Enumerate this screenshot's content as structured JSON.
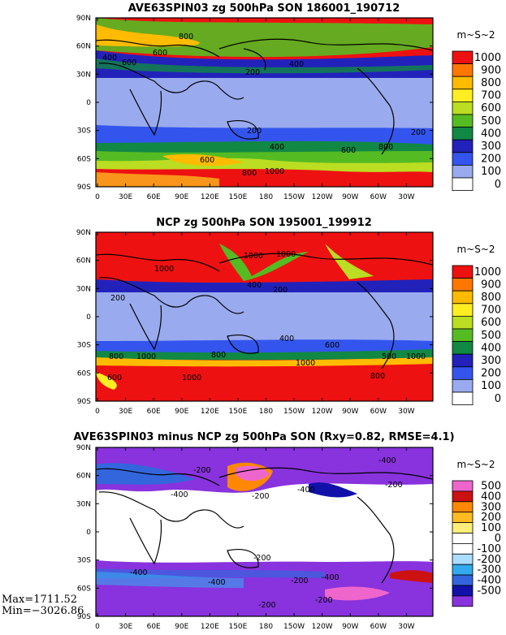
{
  "lat_labels": [
    "90N",
    "60N",
    "30N",
    "0",
    "30S",
    "60S",
    "90S"
  ],
  "lon_labels": [
    "0",
    "30E",
    "60E",
    "90E",
    "120E",
    "150E",
    "180",
    "150W",
    "120W",
    "90W",
    "60W",
    "30W"
  ],
  "panels": [
    {
      "title": "AVE63SPIN03 zg 500hPa SON 186001_190712",
      "units": "m~S~2",
      "colorbar": [
        {
          "label": "1000",
          "color": "#ee1111"
        },
        {
          "label": "900",
          "color": "#ff7700"
        },
        {
          "label": "800",
          "color": "#ffbb00"
        },
        {
          "label": "700",
          "color": "#ffee22"
        },
        {
          "label": "600",
          "color": "#bbdd22"
        },
        {
          "label": "500",
          "color": "#55bb22"
        },
        {
          "label": "400",
          "color": "#118844"
        },
        {
          "label": "300",
          "color": "#2222bb"
        },
        {
          "label": "200",
          "color": "#3355ee"
        },
        {
          "label": "100",
          "color": "#99aaee"
        },
        {
          "label": "0",
          "color": "#ffffff"
        }
      ],
      "contour_labels": [
        "800",
        "400",
        "600",
        "600",
        "400",
        "200",
        "200",
        "200",
        "400",
        "600",
        "600",
        "800",
        "1000",
        "800"
      ]
    },
    {
      "title": "NCP zg 500hPa SON 195001_199912",
      "units": "m~S~2",
      "colorbar": [
        {
          "label": "1000",
          "color": "#ee1111"
        },
        {
          "label": "900",
          "color": "#ff7700"
        },
        {
          "label": "800",
          "color": "#ffbb00"
        },
        {
          "label": "700",
          "color": "#ffee22"
        },
        {
          "label": "600",
          "color": "#bbdd22"
        },
        {
          "label": "500",
          "color": "#55bb22"
        },
        {
          "label": "400",
          "color": "#118844"
        },
        {
          "label": "300",
          "color": "#2222bb"
        },
        {
          "label": "200",
          "color": "#3355ee"
        },
        {
          "label": "100",
          "color": "#99aaee"
        },
        {
          "label": "0",
          "color": "#ffffff"
        }
      ],
      "contour_labels": [
        "1000",
        "1000",
        "400",
        "200",
        "200",
        "400",
        "600",
        "800",
        "1000",
        "800",
        "1000",
        "1000",
        "600",
        "1000",
        "800",
        "1000",
        "500"
      ]
    },
    {
      "title": "AVE63SPIN03 minus NCP zg 500hPa SON (Rxy=0.82, RMSE=4.1)",
      "units": "m~S~2",
      "colorbar": [
        {
          "label": "500",
          "color": "#ee66cc"
        },
        {
          "label": "400",
          "color": "#cc1111"
        },
        {
          "label": "300",
          "color": "#ff8800"
        },
        {
          "label": "200",
          "color": "#ffbb22"
        },
        {
          "label": "100",
          "color": "#ffee77"
        },
        {
          "label": "0",
          "color": "#ffffff"
        },
        {
          "label": "-100",
          "color": "#ffffff"
        },
        {
          "label": "-200",
          "color": "#aaddff"
        },
        {
          "label": "-300",
          "color": "#33aaee"
        },
        {
          "label": "-400",
          "color": "#3366dd"
        },
        {
          "label": "-500",
          "color": "#1111aa"
        },
        {
          "label": "",
          "color": "#8833dd"
        }
      ],
      "contour_labels": [
        "-200",
        "-400",
        "-400",
        "-200",
        "-400",
        "-200",
        "-200",
        "-400",
        "-400",
        "-200",
        "-400",
        "-200",
        "-200"
      ],
      "stats": {
        "max": "Max=1711.52",
        "min": "Min=−3026.86"
      }
    }
  ]
}
